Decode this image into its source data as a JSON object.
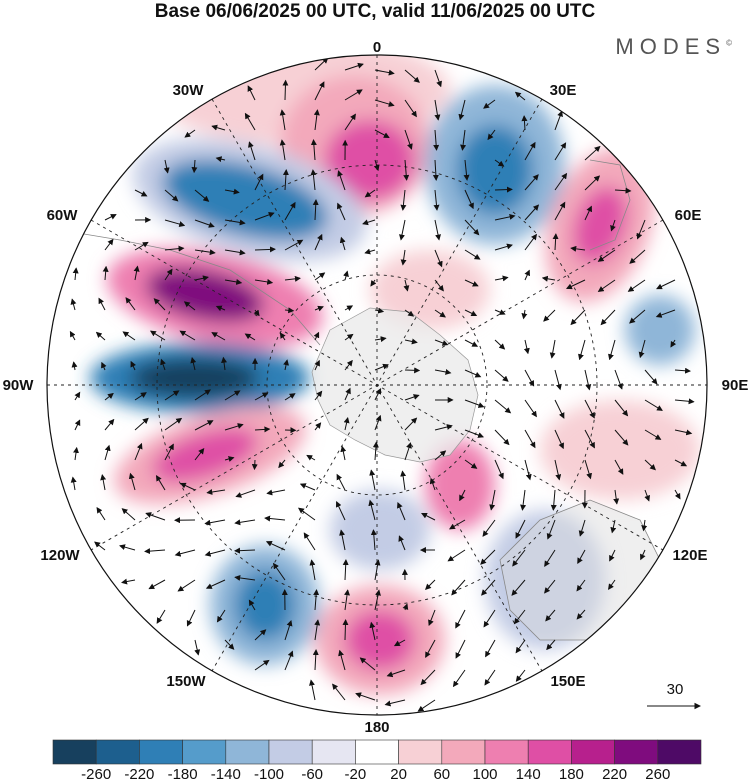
{
  "title": "Base 06/06/2025 00 UTC, valid 11/06/2025 00 UTC",
  "brand": {
    "text": "MODES",
    "mark": "©"
  },
  "map": {
    "projection": "south-polar-stereographic",
    "longitude_labels": [
      "0",
      "30E",
      "60E",
      "90E",
      "120E",
      "150E",
      "180",
      "150W",
      "120W",
      "90W",
      "60W",
      "30W"
    ],
    "vector_reference": {
      "value": "30"
    }
  },
  "colorbar": {
    "ticks": [
      "-260",
      "-220",
      "-180",
      "-140",
      "-100",
      "-60",
      "-20",
      "20",
      "60",
      "100",
      "140",
      "180",
      "220",
      "260"
    ],
    "colors": [
      "#17405e",
      "#1d5f8e",
      "#2f7fb6",
      "#559ccb",
      "#8fb6d8",
      "#c3cce5",
      "#e6e6f2",
      "#ffffff",
      "#f7d0d5",
      "#f3a9bb",
      "#ee7fb0",
      "#df4fa5",
      "#b7208d",
      "#7f0c7e",
      "#4e0a66"
    ]
  }
}
